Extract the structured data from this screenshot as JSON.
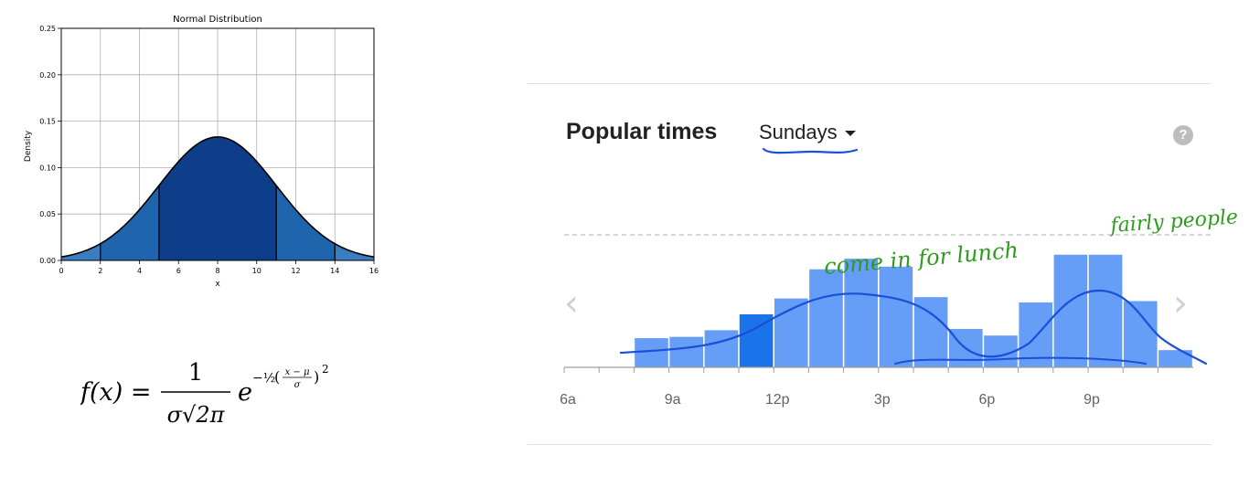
{
  "chart_data": [
    {
      "type": "area",
      "title": "Normal Distribution",
      "xlabel": "x",
      "ylabel": "Density",
      "xlim": [
        0,
        16
      ],
      "ylim": [
        0,
        0.25
      ],
      "xticks": [
        "0",
        "2",
        "4",
        "6",
        "8",
        "10",
        "12",
        "14",
        "16"
      ],
      "yticks": [
        "0.00",
        "0.05",
        "0.10",
        "0.15",
        "0.20",
        "0.25"
      ],
      "mean": 8,
      "sd": 3,
      "grid": true,
      "regions": [
        {
          "from": 0,
          "to": 2,
          "color": "#3a7dc0"
        },
        {
          "from": 2,
          "to": 5,
          "color": "#1f65ad"
        },
        {
          "from": 5,
          "to": 11,
          "color": "#0e3e8a"
        },
        {
          "from": 11,
          "to": 14,
          "color": "#1f65ad"
        },
        {
          "from": 14,
          "to": 16,
          "color": "#3a7dc0"
        }
      ],
      "dividers": [
        2,
        5,
        11,
        14
      ],
      "formula": {
        "lhs": "f(x) =",
        "numerator": "1",
        "denominator": "σ√2π",
        "base": "e",
        "exponent_coef": "−½",
        "exponent_frac_num": "x − μ",
        "exponent_frac_den": "σ",
        "exponent_power": "2"
      }
    },
    {
      "type": "bar",
      "title": "Popular times",
      "categories": [
        "6a",
        "7a",
        "8a",
        "9a",
        "10a",
        "11a",
        "12p",
        "1p",
        "2p",
        "3p",
        "4p",
        "5p",
        "6p",
        "7p",
        "8p",
        "9p",
        "10p",
        "11p"
      ],
      "values": [
        0,
        0,
        22,
        23,
        28,
        40,
        52,
        74,
        82,
        76,
        53,
        29,
        24,
        49,
        85,
        85,
        50,
        13
      ],
      "highlight_index": 5,
      "xticks": [
        "6a",
        "9a",
        "12p",
        "3p",
        "6p",
        "9p"
      ],
      "ylim": [
        0,
        100
      ],
      "colors": {
        "bar": "#669df6",
        "highlight": "#1a73e8",
        "empty": "#bdbdbd"
      }
    }
  ],
  "popular_times": {
    "title": "Popular times",
    "day": "Sundays",
    "help_icon": "?",
    "prev_icon": "‹",
    "next_icon": "›"
  },
  "annotations": {
    "lunch": "come in for lunch",
    "people": "fairly people",
    "color": "#2f9a1f"
  }
}
